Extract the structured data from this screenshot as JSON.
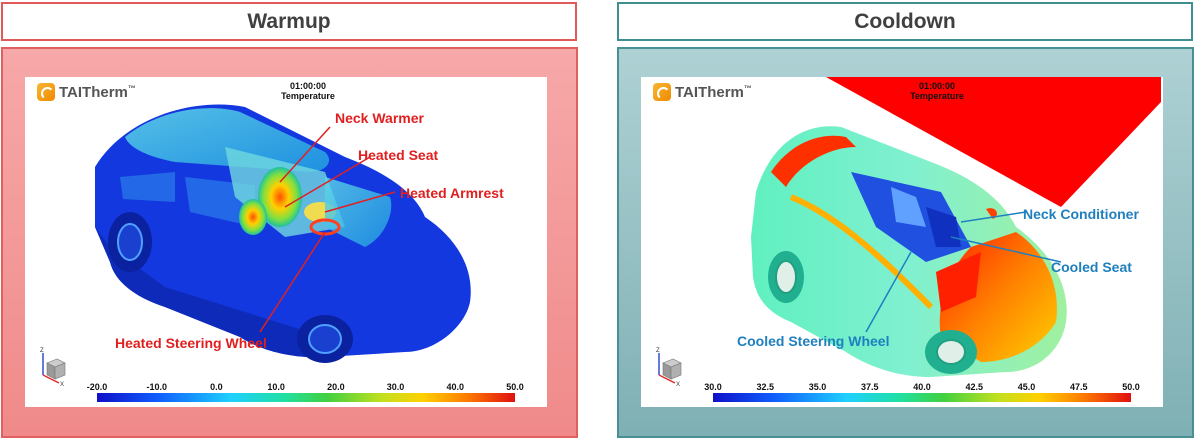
{
  "panels": [
    {
      "title": "Warmup",
      "logo_text": "TAITherm",
      "logo_tm": "™",
      "time": "01:00:00",
      "quantity": "Temperature",
      "labels": [
        "Neck Warmer",
        "Heated Seat",
        "Heated Armrest",
        "Heated Steering Wheel"
      ],
      "scale": [
        "-20.0",
        "-10.0",
        "0.0",
        "10.0",
        "20.0",
        "30.0",
        "40.0",
        "50.0"
      ]
    },
    {
      "title": "Cooldown",
      "logo_text": "TAITherm",
      "logo_tm": "™",
      "time": "01:00:00",
      "quantity": "Temperature",
      "labels": [
        "Neck Conditioner",
        "Cooled Seat",
        "Cooled Steering Wheel"
      ],
      "scale": [
        "30.0",
        "32.5",
        "35.0",
        "37.5",
        "40.0",
        "42.5",
        "45.0",
        "47.5",
        "50.0"
      ]
    }
  ],
  "colors": {
    "warm_accent": "#e02020",
    "cool_accent": "#1f7fbf",
    "warm_border": "#e05a5a",
    "cool_border": "#3e8f90"
  }
}
